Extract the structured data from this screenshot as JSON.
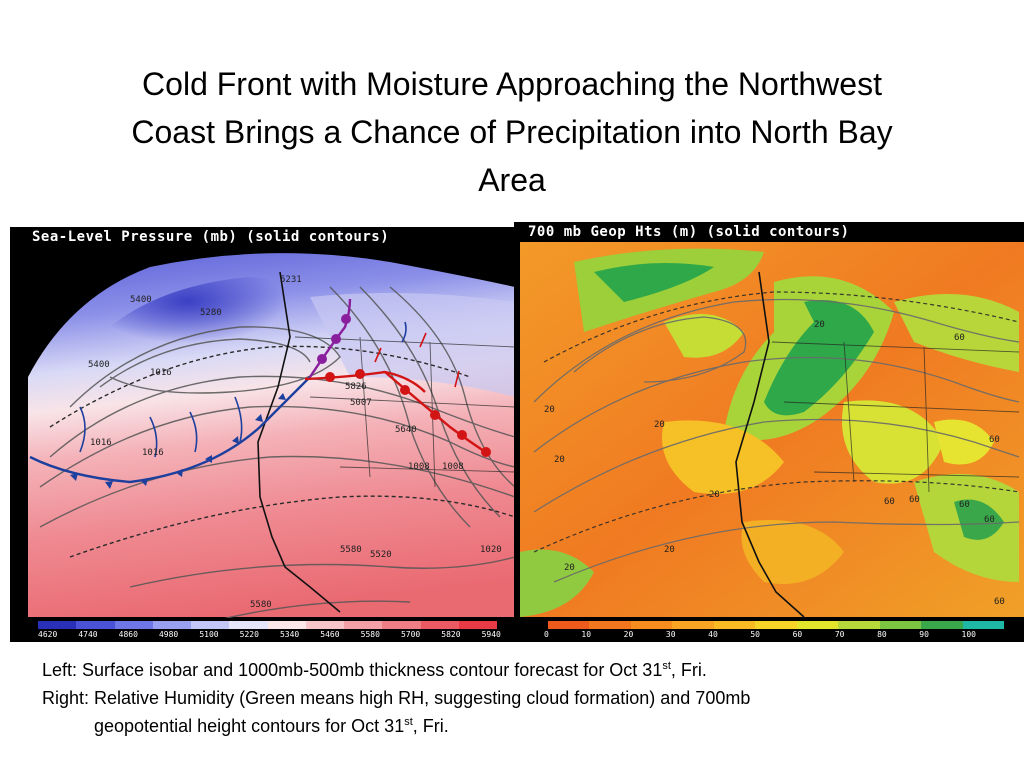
{
  "title": {
    "line1": "Cold Front with Moisture Approaching the Northwest",
    "line2": "Coast Brings a Chance of Precipitation into North Bay",
    "line3": "Area"
  },
  "left_map": {
    "header": "Sea-Level Pressure (mb) (solid contours)",
    "colorbar_labels": [
      "4620",
      "4740",
      "4860",
      "4980",
      "5100",
      "5220",
      "5340",
      "5460",
      "5580",
      "5700",
      "5820",
      "5940"
    ],
    "colorbar_colors": [
      "#2a2fb8",
      "#4a52d6",
      "#6f76e6",
      "#9aa0f0",
      "#c3c6f6",
      "#e4e5fb",
      "#fbe6e8",
      "#f7c4c8",
      "#f3a0a6",
      "#ef7d84",
      "#eb5a62",
      "#e83a44"
    ],
    "contour_labels": [
      "5400",
      "5280",
      "5231",
      "5400",
      "1016",
      "1016",
      "1016",
      "5826",
      "5007",
      "5640",
      "1008",
      "1008",
      "1020",
      "5580",
      "5520",
      "5580"
    ]
  },
  "right_map": {
    "header": "700 mb Geop Hts (m) (solid contours)",
    "colorbar_labels": [
      "0",
      "10",
      "20",
      "30",
      "40",
      "50",
      "60",
      "70",
      "80",
      "90",
      "100"
    ],
    "colorbar_colors": [
      "#ee5a1c",
      "#f2761e",
      "#f58e1f",
      "#f7a522",
      "#f8bb24",
      "#f6d428",
      "#e3e52c",
      "#b6d83a",
      "#7cc540",
      "#3aa84a",
      "#1fb7a5"
    ],
    "contour_labels": [
      "20",
      "20",
      "20",
      "20",
      "60",
      "60",
      "60",
      "60",
      "60",
      "20",
      "60",
      "60",
      "20",
      "20"
    ]
  },
  "caption": {
    "line1_pre": "Left: Surface isobar and 1000mb-500mb thickness contour forecast for Oct 31",
    "line1_sup": "st",
    "line1_post": ", Fri.",
    "line2": "Right: Relative Humidity (Green means high RH, suggesting cloud formation) and 700mb",
    "line3_pre": "geopotential height contours for Oct 31",
    "line3_sup": "st",
    "line3_post": ", Fri."
  }
}
